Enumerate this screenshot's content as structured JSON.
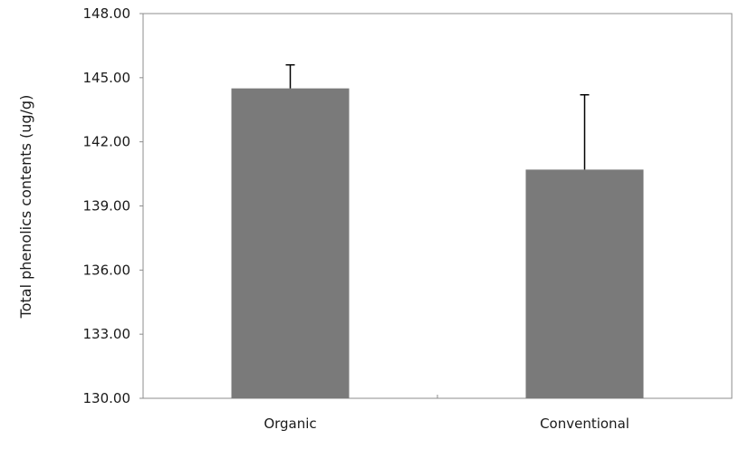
{
  "chart_data": {
    "type": "bar",
    "title": "",
    "xlabel": "",
    "ylabel": "Total phenolics contents (ug/g)",
    "categories": [
      "Organic",
      "Conventional"
    ],
    "values": [
      144.5,
      140.7
    ],
    "error_plus": [
      1.1,
      3.5
    ],
    "ylim": [
      130.0,
      148.0
    ],
    "yticks": [
      130.0,
      133.0,
      136.0,
      139.0,
      142.0,
      145.0,
      148.0
    ],
    "ytick_labels": [
      "130.00",
      "133.00",
      "136.00",
      "139.00",
      "142.00",
      "145.00",
      "148.00"
    ],
    "bar_color": "#7a7a7a",
    "grid": false,
    "legend": "none"
  }
}
